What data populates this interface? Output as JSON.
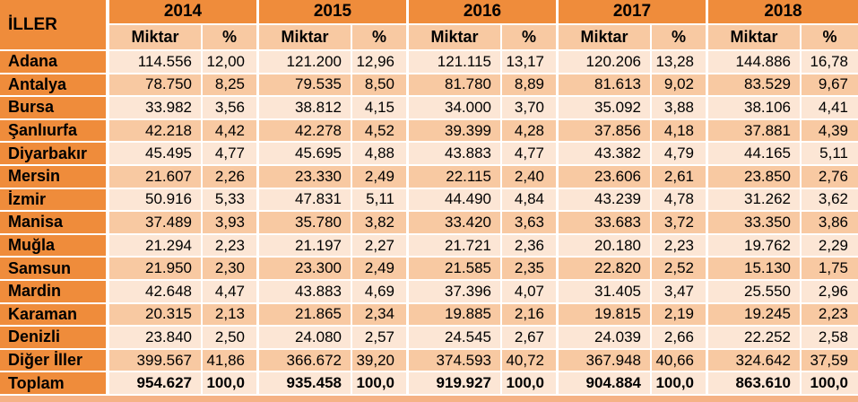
{
  "chart_data": {
    "type": "table",
    "corner_label": "İLLER",
    "years": [
      "2014",
      "2015",
      "2016",
      "2017",
      "2018"
    ],
    "subheaders": [
      "Miktar",
      "%"
    ],
    "rows": [
      {
        "label": "Adana",
        "values": [
          "114.556",
          "12,00",
          "121.200",
          "12,96",
          "121.115",
          "13,17",
          "120.206",
          "13,28",
          "144.886",
          "16,78"
        ]
      },
      {
        "label": "Antalya",
        "values": [
          "78.750",
          "8,25",
          "79.535",
          "8,50",
          "81.780",
          "8,89",
          "81.613",
          "9,02",
          "83.529",
          "9,67"
        ]
      },
      {
        "label": "Bursa",
        "values": [
          "33.982",
          "3,56",
          "38.812",
          "4,15",
          "34.000",
          "3,70",
          "35.092",
          "3,88",
          "38.106",
          "4,41"
        ]
      },
      {
        "label": "Şanlıurfa",
        "values": [
          "42.218",
          "4,42",
          "42.278",
          "4,52",
          "39.399",
          "4,28",
          "37.856",
          "4,18",
          "37.881",
          "4,39"
        ]
      },
      {
        "label": "Diyarbakır",
        "values": [
          "45.495",
          "4,77",
          "45.695",
          "4,88",
          "43.883",
          "4,77",
          "43.382",
          "4,79",
          "44.165",
          "5,11"
        ]
      },
      {
        "label": "Mersin",
        "values": [
          "21.607",
          "2,26",
          "23.330",
          "2,49",
          "22.115",
          "2,40",
          "23.606",
          "2,61",
          "23.850",
          "2,76"
        ]
      },
      {
        "label": "İzmir",
        "values": [
          "50.916",
          "5,33",
          "47.831",
          "5,11",
          "44.490",
          "4,84",
          "43.239",
          "4,78",
          "31.262",
          "3,62"
        ]
      },
      {
        "label": "Manisa",
        "values": [
          "37.489",
          "3,93",
          "35.780",
          "3,82",
          "33.420",
          "3,63",
          "33.683",
          "3,72",
          "33.350",
          "3,86"
        ]
      },
      {
        "label": "Muğla",
        "values": [
          "21.294",
          "2,23",
          "21.197",
          "2,27",
          "21.721",
          "2,36",
          "20.180",
          "2,23",
          "19.762",
          "2,29"
        ]
      },
      {
        "label": "Samsun",
        "values": [
          "21.950",
          "2,30",
          "23.300",
          "2,49",
          "21.585",
          "2,35",
          "22.820",
          "2,52",
          "15.130",
          "1,75"
        ]
      },
      {
        "label": "Mardin",
        "values": [
          "42.648",
          "4,47",
          "43.883",
          "4,69",
          "37.396",
          "4,07",
          "31.405",
          "3,47",
          "25.550",
          "2,96"
        ]
      },
      {
        "label": "Karaman",
        "values": [
          "20.315",
          "2,13",
          "21.865",
          "2,34",
          "19.885",
          "2,16",
          "19.815",
          "2,19",
          "19.245",
          "2,23"
        ]
      },
      {
        "label": "Denizli",
        "values": [
          "23.840",
          "2,50",
          "24.080",
          "2,57",
          "24.545",
          "2,67",
          "24.039",
          "2,66",
          "22.252",
          "2,58"
        ]
      },
      {
        "label": "Diğer İller",
        "values": [
          "399.567",
          "41,86",
          "366.672",
          "39,20",
          "374.593",
          "40,72",
          "367.948",
          "40,66",
          "324.642",
          "37,59"
        ]
      },
      {
        "label": "Toplam",
        "values": [
          "954.627",
          "100,0",
          "935.458",
          "100,0",
          "919.927",
          "100,0",
          "904.884",
          "100,0",
          "863.610",
          "100,0"
        ],
        "bold": true
      }
    ]
  },
  "colors": {
    "orange": "#EF8C3B",
    "dark": "#F8C9A2",
    "light": "#FCE6D5",
    "grid": "#FFFFFF",
    "strip": "#F5B285",
    "text": "#000000"
  }
}
